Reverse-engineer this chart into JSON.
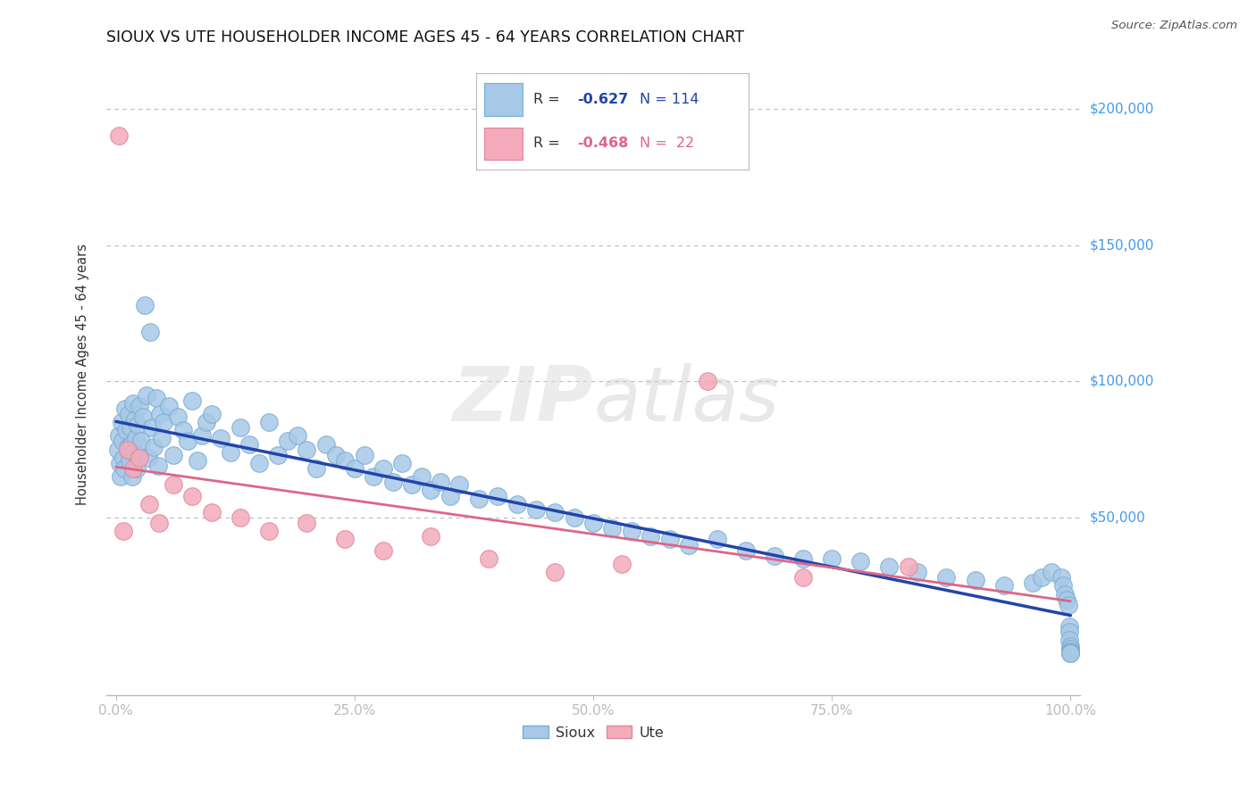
{
  "title": "SIOUX VS UTE HOUSEHOLDER INCOME AGES 45 - 64 YEARS CORRELATION CHART",
  "source": "Source: ZipAtlas.com",
  "ylabel": "Householder Income Ages 45 - 64 years",
  "sioux_label": "Sioux",
  "ute_label": "Ute",
  "sioux_R": -0.627,
  "sioux_N": 114,
  "ute_R": -0.468,
  "ute_N": 22,
  "sioux_color": "#A8C8E8",
  "sioux_edge_color": "#7AAED0",
  "sioux_line_color": "#2244AA",
  "ute_color": "#F4AABB",
  "ute_edge_color": "#E08898",
  "ute_line_color": "#DD6688",
  "background_color": "#FFFFFF",
  "grid_color": "#BBBBBB",
  "ytick_labels": [
    "$50,000",
    "$100,000",
    "$150,000",
    "$200,000"
  ],
  "ytick_values": [
    50000,
    100000,
    150000,
    200000
  ],
  "xtick_labels": [
    "0.0%",
    "25.0%",
    "50.0%",
    "75.0%",
    "100.0%"
  ],
  "xtick_values": [
    0.0,
    0.25,
    0.5,
    0.75,
    1.0
  ],
  "xlim": [
    -0.01,
    1.01
  ],
  "ylim": [
    -15000,
    220000
  ],
  "sioux_x": [
    0.002,
    0.003,
    0.004,
    0.005,
    0.006,
    0.007,
    0.008,
    0.009,
    0.01,
    0.011,
    0.012,
    0.013,
    0.014,
    0.015,
    0.016,
    0.017,
    0.018,
    0.019,
    0.02,
    0.021,
    0.022,
    0.023,
    0.024,
    0.025,
    0.026,
    0.028,
    0.03,
    0.032,
    0.034,
    0.036,
    0.038,
    0.04,
    0.042,
    0.044,
    0.046,
    0.048,
    0.05,
    0.055,
    0.06,
    0.065,
    0.07,
    0.075,
    0.08,
    0.085,
    0.09,
    0.095,
    0.1,
    0.11,
    0.12,
    0.13,
    0.14,
    0.15,
    0.16,
    0.17,
    0.18,
    0.19,
    0.2,
    0.21,
    0.22,
    0.23,
    0.24,
    0.25,
    0.26,
    0.27,
    0.28,
    0.29,
    0.3,
    0.31,
    0.32,
    0.33,
    0.34,
    0.35,
    0.36,
    0.38,
    0.4,
    0.42,
    0.44,
    0.46,
    0.48,
    0.5,
    0.52,
    0.54,
    0.56,
    0.58,
    0.6,
    0.63,
    0.66,
    0.69,
    0.72,
    0.75,
    0.78,
    0.81,
    0.84,
    0.87,
    0.9,
    0.93,
    0.96,
    0.97,
    0.98,
    0.99,
    0.992,
    0.994,
    0.996,
    0.998,
    0.999,
    0.999,
    0.999,
    1.0,
    1.0,
    1.0,
    1.0,
    1.0,
    1.0,
    1.0
  ],
  "sioux_y": [
    75000,
    80000,
    70000,
    65000,
    85000,
    78000,
    72000,
    68000,
    90000,
    82000,
    76000,
    88000,
    71000,
    83000,
    77000,
    65000,
    92000,
    74000,
    86000,
    79000,
    68000,
    84000,
    73000,
    91000,
    78000,
    87000,
    128000,
    95000,
    72000,
    118000,
    83000,
    76000,
    94000,
    69000,
    88000,
    79000,
    85000,
    91000,
    73000,
    87000,
    82000,
    78000,
    93000,
    71000,
    80000,
    85000,
    88000,
    79000,
    74000,
    83000,
    77000,
    70000,
    85000,
    73000,
    78000,
    80000,
    75000,
    68000,
    77000,
    73000,
    71000,
    68000,
    73000,
    65000,
    68000,
    63000,
    70000,
    62000,
    65000,
    60000,
    63000,
    58000,
    62000,
    57000,
    58000,
    55000,
    53000,
    52000,
    50000,
    48000,
    46000,
    45000,
    43000,
    42000,
    40000,
    42000,
    38000,
    36000,
    35000,
    35000,
    34000,
    32000,
    30000,
    28000,
    27000,
    25000,
    26000,
    28000,
    30000,
    28000,
    25000,
    22000,
    20000,
    18000,
    10000,
    8000,
    5000,
    3000,
    2000,
    1000,
    800,
    500,
    200,
    100
  ],
  "ute_x": [
    0.003,
    0.008,
    0.012,
    0.018,
    0.025,
    0.035,
    0.045,
    0.06,
    0.08,
    0.1,
    0.13,
    0.16,
    0.2,
    0.24,
    0.28,
    0.33,
    0.39,
    0.46,
    0.53,
    0.62,
    0.72,
    0.83
  ],
  "ute_y": [
    190000,
    45000,
    75000,
    68000,
    72000,
    55000,
    48000,
    62000,
    58000,
    52000,
    50000,
    45000,
    48000,
    42000,
    38000,
    43000,
    35000,
    30000,
    33000,
    100000,
    28000,
    32000
  ],
  "watermark": "ZIPatlas",
  "watermark_zip": "ZIP",
  "watermark_atlas": "atlas"
}
